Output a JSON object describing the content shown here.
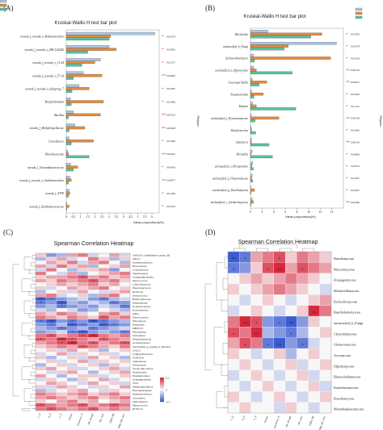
{
  "panel_labels": [
    "(A)",
    "(B)",
    "(C)",
    "(D)"
  ],
  "chart_data": [
    {
      "type": "bar",
      "title": "Kruskal-Wallis H test bar plot",
      "xlabel": "Mean proportions(%)",
      "ylabel": "Phylum",
      "xlim": [
        0,
        6.5
      ],
      "xticks": [
        "0",
        "0.5",
        "1",
        "1.5",
        "2",
        "2.5",
        "3",
        "3.5",
        "4",
        "4.5",
        "5",
        "5.5",
        "6"
      ],
      "legend": {
        "placement": "top-right"
      },
      "series_colors": [
        "#a9c7e2",
        "#e58a3c",
        "#54c29e"
      ],
      "categories": [
        "norank_f_norank_o_Rokubacteriales",
        "norank_f_norank_o_IMCC26256",
        "norank_f_norank_o_11-24",
        "norank_f_norank_o_57-14",
        "norank_f_norank_o_Subgroup_7",
        "Bradyrhizobium",
        "Bacillus",
        "norank_f_Methyloligellaceae",
        "Conexibacter",
        "Microbacterium",
        "norank_f_Vicinamibacteraceae",
        "norank_f_norank_o_Acidobacteriales",
        "norank_f_A7F8",
        "norank_f_Xanthobacteraceae"
      ],
      "series": [
        {
          "values": [
            6.2,
            3.0,
            2.4,
            1.2,
            0.9,
            0.3,
            0.5,
            0.6,
            0.2,
            0.1,
            0.3,
            0.25,
            0.2,
            0.05
          ]
        },
        {
          "values": [
            3.1,
            3.5,
            2.0,
            2.5,
            1.6,
            2.6,
            2.4,
            1.3,
            1.9,
            0.15,
            0.8,
            0.35,
            0.25,
            0.2
          ]
        },
        {
          "values": [
            3.0,
            1.5,
            1.1,
            0.5,
            0.4,
            0.35,
            0.15,
            0.2,
            0.35,
            1.6,
            0.5,
            0.15,
            0.15,
            0.05
          ]
        }
      ],
      "pvalues": [
        "0.03579",
        "0.02891",
        "0.01317",
        "0.00605",
        "0.02387",
        "0.01846",
        "0.00325",
        "0.00928",
        "0.01046",
        "0.00447",
        "0.04243",
        "0.00877",
        "0.01485",
        "0.03476"
      ],
      "stars": [
        "*",
        "*",
        "*",
        "**",
        "*",
        "*",
        "**",
        "**",
        "*",
        "**",
        "*",
        "**",
        "*",
        "*"
      ]
    },
    {
      "type": "bar",
      "title": "Kruskal-Wallis H test bar plot",
      "xlabel": "Mean proportions(%)",
      "ylabel": "Phylum",
      "xlim": [
        0,
        16
      ],
      "xticks": [
        "0",
        "2",
        "4",
        "6",
        "8",
        "10",
        "12",
        "14"
      ],
      "legend": {
        "placement": "top-right"
      },
      "series_colors": [
        "#a9c7e2",
        "#e58a3c",
        "#54c29e"
      ],
      "categories": [
        "Mortierella",
        "unclassified_k_Fungi",
        "Archaeorhizomyces",
        "unclassified_o_Hypocreales",
        "Leucosporidiella",
        "Pseudeurotium",
        "Russula",
        "unclassified_f_Pyronemataceae",
        "Dactylonectria",
        "Lipomyces",
        "Hirsutella",
        "unclassified_o_Pleosporales",
        "unclassified_f_Chaetomiaceae",
        "unclassified_p_Rozellomycota",
        "unclassified_c_Sordariomycetes"
      ],
      "series": [
        {
          "values": [
            3.0,
            14.8,
            0.5,
            0.5,
            0.3,
            0.2,
            0.4,
            0.15,
            0.1,
            0.2,
            0.3,
            0.4,
            0.3,
            0.1,
            0.3
          ]
        },
        {
          "values": [
            12.3,
            6.5,
            13.8,
            1.0,
            2.8,
            2.2,
            1.0,
            4.9,
            0.2,
            0.15,
            0.1,
            0.2,
            0.2,
            0.7,
            0.5
          ]
        },
        {
          "values": [
            10.4,
            5.8,
            0.7,
            7.2,
            1.5,
            0.6,
            7.8,
            0.8,
            0.9,
            3.2,
            3.8,
            0.5,
            0.4,
            0.1,
            0.1
          ]
        }
      ],
      "pvalues": [
        "0.03435",
        "0.03578",
        "0.02526",
        "0.00130",
        "0.00637",
        "0.04302",
        "0.01331",
        "0.00356",
        "0.01662",
        "0.00130",
        "0.03804",
        "0.04791",
        "0.01957",
        "0.02827",
        "0.00400"
      ],
      "stars": [
        "*",
        "*",
        "*",
        "**",
        "**",
        "*",
        "*",
        "**",
        "*",
        "**",
        "*",
        "*",
        "*",
        "*",
        "**"
      ]
    },
    {
      "type": "heatmap",
      "title": "Spearman Correlation Heatmap",
      "columns": [
        "C_N",
        "N_P",
        "C_P",
        "Nitrate",
        "Ammonia_N",
        "Mb_Rough",
        "Mb_Adv",
        "NRB_Mb",
        "NRB_Mb_Adv"
      ],
      "rows": [
        "SAR324_clade(Marine_group_B)",
        "WPS-2",
        "Entotheonellaeota",
        "Bacteroidota",
        "Cyanobacteria",
        "Thermotogota",
        "Gemmatimonadota",
        "Myxococcota",
        "Latescibacterota",
        "Planctomycetota",
        "RCP2-54",
        "Deinococcota",
        "Bdellovibrionota",
        "Dependentiae",
        "Actinobacteriota",
        "Proteobacteria",
        "NB1-j",
        "Fibrobacterota",
        "Nitrospirota",
        "Firmicutes",
        "MBNT15",
        "Nitrospinota",
        "Chloroflexi",
        "Desulfobacterota",
        "Acidobacteriota",
        "unclassified_k_norank_d_Bacteria",
        "GAL15",
        "Campylobacterota",
        "FCPU426",
        "Sumerlaeota",
        "Zixibacteria",
        "Verrucomicrobiota",
        "Dadabacteria",
        "Elusimicrobiota",
        "Armatimonadota",
        "WS4",
        "Methylomirabilota",
        "Hydrogenedentes",
        "Halanaerobiaeota",
        "Chloroflexi_2",
        "Spirochaetota",
        "Myxococcota_2",
        "RCP2-54_2"
      ],
      "row_labels_shown": [
        "SAR324_clade(Marine_group_B)",
        "WPS-2",
        "Entotheonellaeota",
        "Bacteroidota",
        "Cyanobacteria",
        "Thermotogota",
        "Gemmatimonadota",
        "Myxococcota",
        "Latescibacterota",
        "Planctomycetota",
        "RCP2-54",
        "Deinococcota",
        "Bdellovibrionota",
        "Dependentiae",
        "Actinobacteriota",
        "Proteobacteria",
        "NB1-j",
        "Fibrobacterota",
        "Nitrospirota",
        "Firmicutes",
        "MBNT15",
        "Nitrospinota",
        "Chloroflexi",
        "Desulfobacterota",
        "Acidobacteriota",
        "unclassified_k_norank_d_Bacteria",
        "GAL15",
        "Campylobacterota",
        "FCPU426",
        "Sumerlaeota",
        "Zixibacteria",
        "Verrucomicrobiota",
        "Dadabacteria",
        "Elusimicrobiota",
        "Armatimonadota",
        "WS4",
        "Methylomirabilota",
        "Hydrogenedentes",
        "Halanaerobiaeota",
        "Chloroflexi",
        "Spirochaetota",
        "Myxococcota",
        "RCP2-54"
      ],
      "color_scale": {
        "min": -0.5,
        "max": 0.5,
        "ticks": [
          "0.5",
          "0",
          "-0.5"
        ],
        "low": "#3b5bd1",
        "mid": "#f7f7f7",
        "high": "#d7263d"
      },
      "values": [
        [
          0.1,
          -0.3,
          -0.2,
          0.2,
          0.3,
          -0.1,
          0.0,
          0.2,
          -0.1
        ],
        [
          -0.2,
          0.1,
          0.2,
          -0.1,
          0.0,
          0.3,
          0.1,
          -0.2,
          0.1
        ],
        [
          0.0,
          0.2,
          0.1,
          0.3,
          -0.1,
          0.2,
          0.3,
          0.0,
          -0.2
        ],
        [
          0.2,
          -0.1,
          0.3,
          0.1,
          0.2,
          -0.2,
          0.0,
          0.1,
          0.2
        ],
        [
          -0.1,
          0.3,
          0.0,
          -0.2,
          0.1,
          0.1,
          0.2,
          -0.3,
          0.0
        ],
        [
          0.3,
          0.0,
          -0.1,
          0.2,
          -0.2,
          0.0,
          0.1,
          0.2,
          0.3
        ],
        [
          0.1,
          0.2,
          0.2,
          0.3,
          0.4,
          0.2,
          0.3,
          0.1,
          0.2
        ],
        [
          0.2,
          0.1,
          0.3,
          0.2,
          0.3,
          0.4,
          0.2,
          0.3,
          0.1
        ],
        [
          0.0,
          0.1,
          0.2,
          0.1,
          0.2,
          0.3,
          0.1,
          0.2,
          0.0
        ],
        [
          0.1,
          -0.1,
          0.0,
          0.2,
          0.1,
          0.2,
          0.3,
          0.0,
          0.1
        ],
        [
          -0.2,
          0.0,
          0.1,
          -0.1,
          0.2,
          0.0,
          -0.1,
          0.1,
          0.2
        ],
        [
          0.2,
          0.3,
          -0.1,
          0.0,
          0.1,
          -0.2,
          0.2,
          0.3,
          0.0
        ],
        [
          -0.5,
          -0.4,
          -0.3,
          -0.2,
          -0.1,
          -0.3,
          -0.4,
          -0.2,
          -0.1
        ],
        [
          -0.4,
          -0.3,
          -0.5,
          -0.2,
          -0.3,
          -0.1,
          -0.2,
          -0.4,
          -0.3
        ],
        [
          -0.3,
          -0.2,
          -0.4,
          -0.3,
          -0.2,
          -0.3,
          -0.1,
          -0.2,
          -0.4
        ],
        [
          -0.1,
          -0.2,
          0.0,
          -0.1,
          -0.3,
          -0.2,
          0.0,
          -0.1,
          -0.2
        ],
        [
          0.2,
          0.1,
          0.3,
          0.2,
          0.1,
          0.0,
          0.2,
          0.3,
          0.1
        ],
        [
          0.3,
          0.2,
          0.1,
          0.3,
          0.2,
          0.1,
          0.4,
          0.2,
          0.3
        ],
        [
          -0.4,
          -0.5,
          -0.3,
          -0.4,
          -0.3,
          -0.5,
          -0.4,
          -0.3,
          -0.2
        ],
        [
          -0.3,
          -0.4,
          -0.2,
          -0.5,
          -0.4,
          -0.3,
          -0.5,
          -0.4,
          -0.3
        ],
        [
          -0.2,
          -0.3,
          -0.4,
          -0.3,
          -0.2,
          -0.4,
          -0.3,
          -0.2,
          -0.1
        ],
        [
          -0.3,
          -0.2,
          -0.1,
          -0.4,
          -0.5,
          -0.3,
          -0.2,
          -0.3,
          -0.4
        ],
        [
          0.3,
          0.4,
          0.2,
          0.3,
          0.4,
          0.5,
          0.3,
          0.2,
          0.3
        ],
        [
          0.4,
          0.3,
          0.5,
          0.4,
          0.3,
          0.2,
          0.4,
          0.3,
          0.2
        ],
        [
          0.2,
          0.3,
          0.4,
          0.5,
          0.3,
          0.4,
          0.2,
          0.3,
          0.4
        ],
        [
          0.1,
          0.2,
          0.3,
          0.2,
          0.4,
          0.3,
          0.2,
          0.1,
          0.3
        ],
        [
          0.0,
          0.1,
          -0.1,
          0.2,
          0.0,
          0.1,
          -0.2,
          0.0,
          0.1
        ],
        [
          -0.1,
          0.0,
          0.2,
          -0.1,
          0.1,
          0.0,
          0.1,
          -0.1,
          0.0
        ],
        [
          0.1,
          -0.2,
          0.0,
          0.1,
          -0.1,
          0.2,
          0.0,
          0.1,
          -0.2
        ],
        [
          0.0,
          0.1,
          -0.1,
          0.0,
          0.2,
          -0.1,
          0.1,
          0.0,
          0.1
        ],
        [
          -0.2,
          0.0,
          0.1,
          -0.1,
          0.0,
          0.1,
          -0.2,
          0.1,
          0.0
        ],
        [
          0.1,
          0.2,
          0.0,
          0.1,
          -0.1,
          0.0,
          0.1,
          0.2,
          -0.1
        ],
        [
          0.0,
          -0.1,
          0.1,
          0.2,
          0.0,
          -0.2,
          0.0,
          0.1,
          0.2
        ],
        [
          0.2,
          0.0,
          -0.2,
          0.0,
          0.1,
          0.1,
          -0.1,
          0.0,
          0.1
        ],
        [
          -0.1,
          0.1,
          0.0,
          -0.2,
          0.1,
          0.0,
          0.2,
          -0.1,
          0.0
        ],
        [
          0.0,
          0.2,
          0.1,
          0.0,
          -0.1,
          0.2,
          0.0,
          0.1,
          -0.1
        ],
        [
          0.1,
          -0.1,
          0.2,
          0.1,
          0.0,
          -0.1,
          0.1,
          0.0,
          0.2
        ],
        [
          -0.2,
          -0.1,
          0.0,
          0.1,
          0.2,
          0.0,
          -0.1,
          0.1,
          0.0
        ],
        [
          0.3,
          0.2,
          0.1,
          0.2,
          0.3,
          0.1,
          0.2,
          0.3,
          0.1
        ],
        [
          0.2,
          0.3,
          0.2,
          0.1,
          0.2,
          0.3,
          0.1,
          0.2,
          0.3
        ],
        [
          0.1,
          0.0,
          0.2,
          0.3,
          0.1,
          0.2,
          0.0,
          0.1,
          0.2
        ],
        [
          0.4,
          0.3,
          0.2,
          0.3,
          0.4,
          0.2,
          0.3,
          0.4,
          0.3
        ],
        [
          0.3,
          0.4,
          0.3,
          0.2,
          0.3,
          0.4,
          0.2,
          0.3,
          0.2
        ]
      ]
    },
    {
      "type": "heatmap",
      "title": "Spearman Correlation Heatmap",
      "columns": [
        "C_N",
        "N_P",
        "C_P",
        "Nitrate",
        "Ammonia_N",
        "Mb_Rough",
        "Mb_Adv",
        "NRB_Mb",
        "NRB_Mb_Adv"
      ],
      "rows": [
        "Basidiomycota",
        "Mucoromycota",
        "Zoopagomycota",
        "Mortierellomycota",
        "Kickxellomycota",
        "Basidiobolomycota",
        "unclassified_k_Fungi",
        "Chytridiomycota",
        "Glomeromycota",
        "Ascomycota",
        "Olpidiomycota",
        "Blastocladiomycota",
        "Entorrhizomycota",
        "Rozellomycota",
        "Monoblepharomycota"
      ],
      "color_scale": {
        "min": -0.5,
        "max": 0.5,
        "low": "#3b5bd1",
        "mid": "#f7f7f7",
        "high": "#d7263d"
      },
      "values": [
        [
          -0.5,
          -0.4,
          0.2,
          0.3,
          0.4,
          0.1,
          0.3,
          0.2,
          0.1
        ],
        [
          -0.4,
          -0.3,
          0.1,
          0.4,
          0.5,
          0.2,
          0.4,
          0.3,
          0.2
        ],
        [
          0.0,
          0.1,
          0.2,
          0.1,
          0.2,
          0.3,
          0.2,
          0.1,
          0.0
        ],
        [
          0.1,
          0.0,
          0.1,
          0.2,
          0.3,
          0.2,
          0.1,
          0.0,
          -0.1
        ],
        [
          0.0,
          -0.1,
          0.0,
          0.1,
          0.0,
          -0.1,
          0.0,
          0.1,
          0.2
        ],
        [
          -0.1,
          0.0,
          0.1,
          0.0,
          -0.1,
          0.0,
          0.1,
          0.5,
          0.3
        ],
        [
          0.3,
          0.5,
          0.4,
          -0.3,
          -0.4,
          -0.5,
          -0.3,
          0.1,
          0.0
        ],
        [
          0.4,
          0.3,
          0.5,
          -0.2,
          -0.3,
          -0.4,
          -0.2,
          0.0,
          0.1
        ],
        [
          0.2,
          0.4,
          0.3,
          -0.4,
          -0.5,
          -0.3,
          -0.4,
          -0.1,
          0.0
        ],
        [
          0.1,
          0.0,
          -0.1,
          0.0,
          0.1,
          -0.2,
          0.0,
          0.1,
          0.0
        ],
        [
          0.0,
          0.1,
          0.0,
          -0.1,
          0.0,
          0.1,
          -0.1,
          0.0,
          0.1
        ],
        [
          -0.1,
          0.0,
          0.1,
          0.0,
          -0.1,
          0.0,
          0.1,
          -0.1,
          0.0
        ],
        [
          0.0,
          -0.1,
          0.0,
          0.1,
          0.0,
          -0.1,
          0.0,
          0.1,
          -0.1
        ],
        [
          0.1,
          0.0,
          -0.1,
          0.0,
          0.1,
          0.0,
          -0.1,
          0.0,
          0.1
        ],
        [
          0.0,
          0.1,
          0.0,
          0.0,
          -0.1,
          0.1,
          0.0,
          -0.1,
          0.0
        ]
      ]
    }
  ]
}
